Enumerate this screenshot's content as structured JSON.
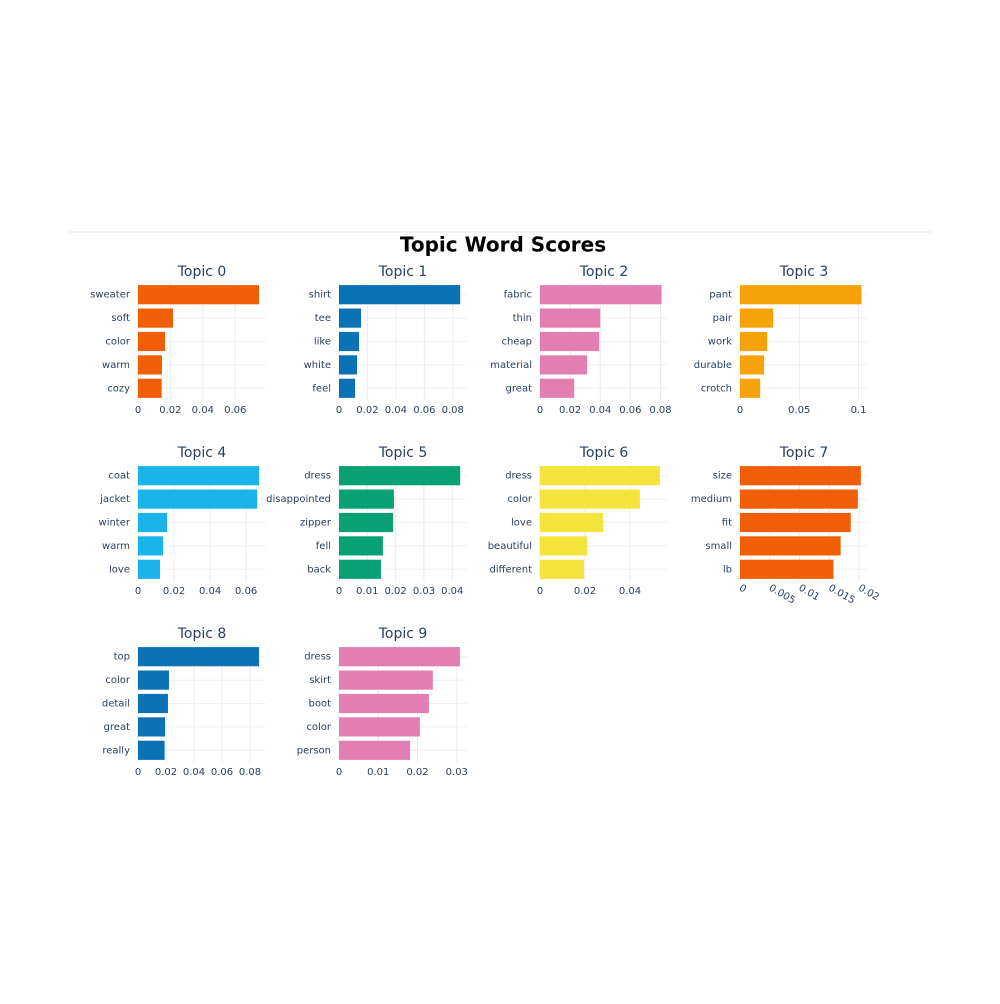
{
  "title": "Topic Word Scores",
  "chart_data": [
    {
      "type": "barh",
      "title": "Topic 0",
      "categories": [
        "sweater",
        "soft",
        "color",
        "warm",
        "cozy"
      ],
      "values": [
        0.0747,
        0.0216,
        0.0167,
        0.0148,
        0.0146
      ],
      "color": "#f05f05",
      "xlim": [
        0,
        0.079
      ],
      "xticks": [
        0,
        0.02,
        0.04,
        0.06
      ],
      "grid": true
    },
    {
      "type": "barh",
      "title": "Topic 1",
      "categories": [
        "shirt",
        "tee",
        "like",
        "white",
        "feel"
      ],
      "values": [
        0.0852,
        0.0155,
        0.0141,
        0.0127,
        0.0113
      ],
      "color": "#0b72b5",
      "xlim": [
        0,
        0.09
      ],
      "xticks": [
        0,
        0.02,
        0.04,
        0.06,
        0.08
      ],
      "grid": true
    },
    {
      "type": "barh",
      "title": "Topic 2",
      "categories": [
        "fabric",
        "thin",
        "cheap",
        "material",
        "great"
      ],
      "values": [
        0.0807,
        0.04,
        0.0393,
        0.0313,
        0.0227
      ],
      "color": "#e27eb0",
      "xlim": [
        0,
        0.085
      ],
      "xticks": [
        0,
        0.02,
        0.04,
        0.06,
        0.08
      ],
      "grid": true
    },
    {
      "type": "barh",
      "title": "Topic 3",
      "categories": [
        "pant",
        "pair",
        "work",
        "durable",
        "crotch"
      ],
      "values": [
        0.1025,
        0.028,
        0.0229,
        0.0203,
        0.017
      ],
      "color": "#f7a20a",
      "xlim": [
        0,
        0.108
      ],
      "xticks": [
        0,
        0.05,
        0.1
      ],
      "grid": true
    },
    {
      "type": "barh",
      "title": "Topic 4",
      "categories": [
        "coat",
        "jacket",
        "winter",
        "warm",
        "love"
      ],
      "values": [
        0.0672,
        0.0661,
        0.0161,
        0.0139,
        0.0122
      ],
      "color": "#1ab4ea",
      "xlim": [
        0,
        0.071
      ],
      "xticks": [
        0,
        0.02,
        0.04,
        0.06
      ],
      "grid": true
    },
    {
      "type": "barh",
      "title": "Topic 5",
      "categories": [
        "dress",
        "disappointed",
        "zipper",
        "fell",
        "back"
      ],
      "values": [
        0.0428,
        0.0194,
        0.0191,
        0.0155,
        0.0148
      ],
      "color": "#07a173",
      "xlim": [
        0,
        0.0452
      ],
      "xticks": [
        0,
        0.01,
        0.02,
        0.03,
        0.04
      ],
      "grid": true
    },
    {
      "type": "barh",
      "title": "Topic 6",
      "categories": [
        "dress",
        "color",
        "love",
        "beautiful",
        "different"
      ],
      "values": [
        0.0533,
        0.0444,
        0.028,
        0.0209,
        0.0196
      ],
      "color": "#f4e43b",
      "xlim": [
        0,
        0.0569
      ],
      "xticks": [
        0,
        0.02,
        0.04
      ],
      "grid": true
    },
    {
      "type": "barh",
      "title": "Topic 7",
      "categories": [
        "size",
        "medium",
        "fit",
        "small",
        "lb"
      ],
      "values": [
        0.0203,
        0.0198,
        0.0186,
        0.0169,
        0.0157
      ],
      "color": "#f05f05",
      "xlim": [
        0,
        0.0215
      ],
      "xticks": [
        0,
        0.005,
        0.01,
        0.015,
        0.02
      ],
      "xtickangle": 30,
      "grid": true
    },
    {
      "type": "barh",
      "title": "Topic 8",
      "categories": [
        "top",
        "color",
        "detail",
        "great",
        "really"
      ],
      "values": [
        0.0864,
        0.0221,
        0.0214,
        0.0193,
        0.019
      ],
      "color": "#0b72b5",
      "xlim": [
        0,
        0.0914
      ],
      "xticks": [
        0,
        0.02,
        0.04,
        0.06,
        0.08
      ],
      "grid": true
    },
    {
      "type": "barh",
      "title": "Topic 9",
      "categories": [
        "dress",
        "skirt",
        "boot",
        "color",
        "person"
      ],
      "values": [
        0.0308,
        0.0239,
        0.0229,
        0.0206,
        0.0181
      ],
      "color": "#e27eb0",
      "xlim": [
        0,
        0.0326
      ],
      "xticks": [
        0,
        0.01,
        0.02,
        0.03
      ],
      "grid": true
    }
  ]
}
